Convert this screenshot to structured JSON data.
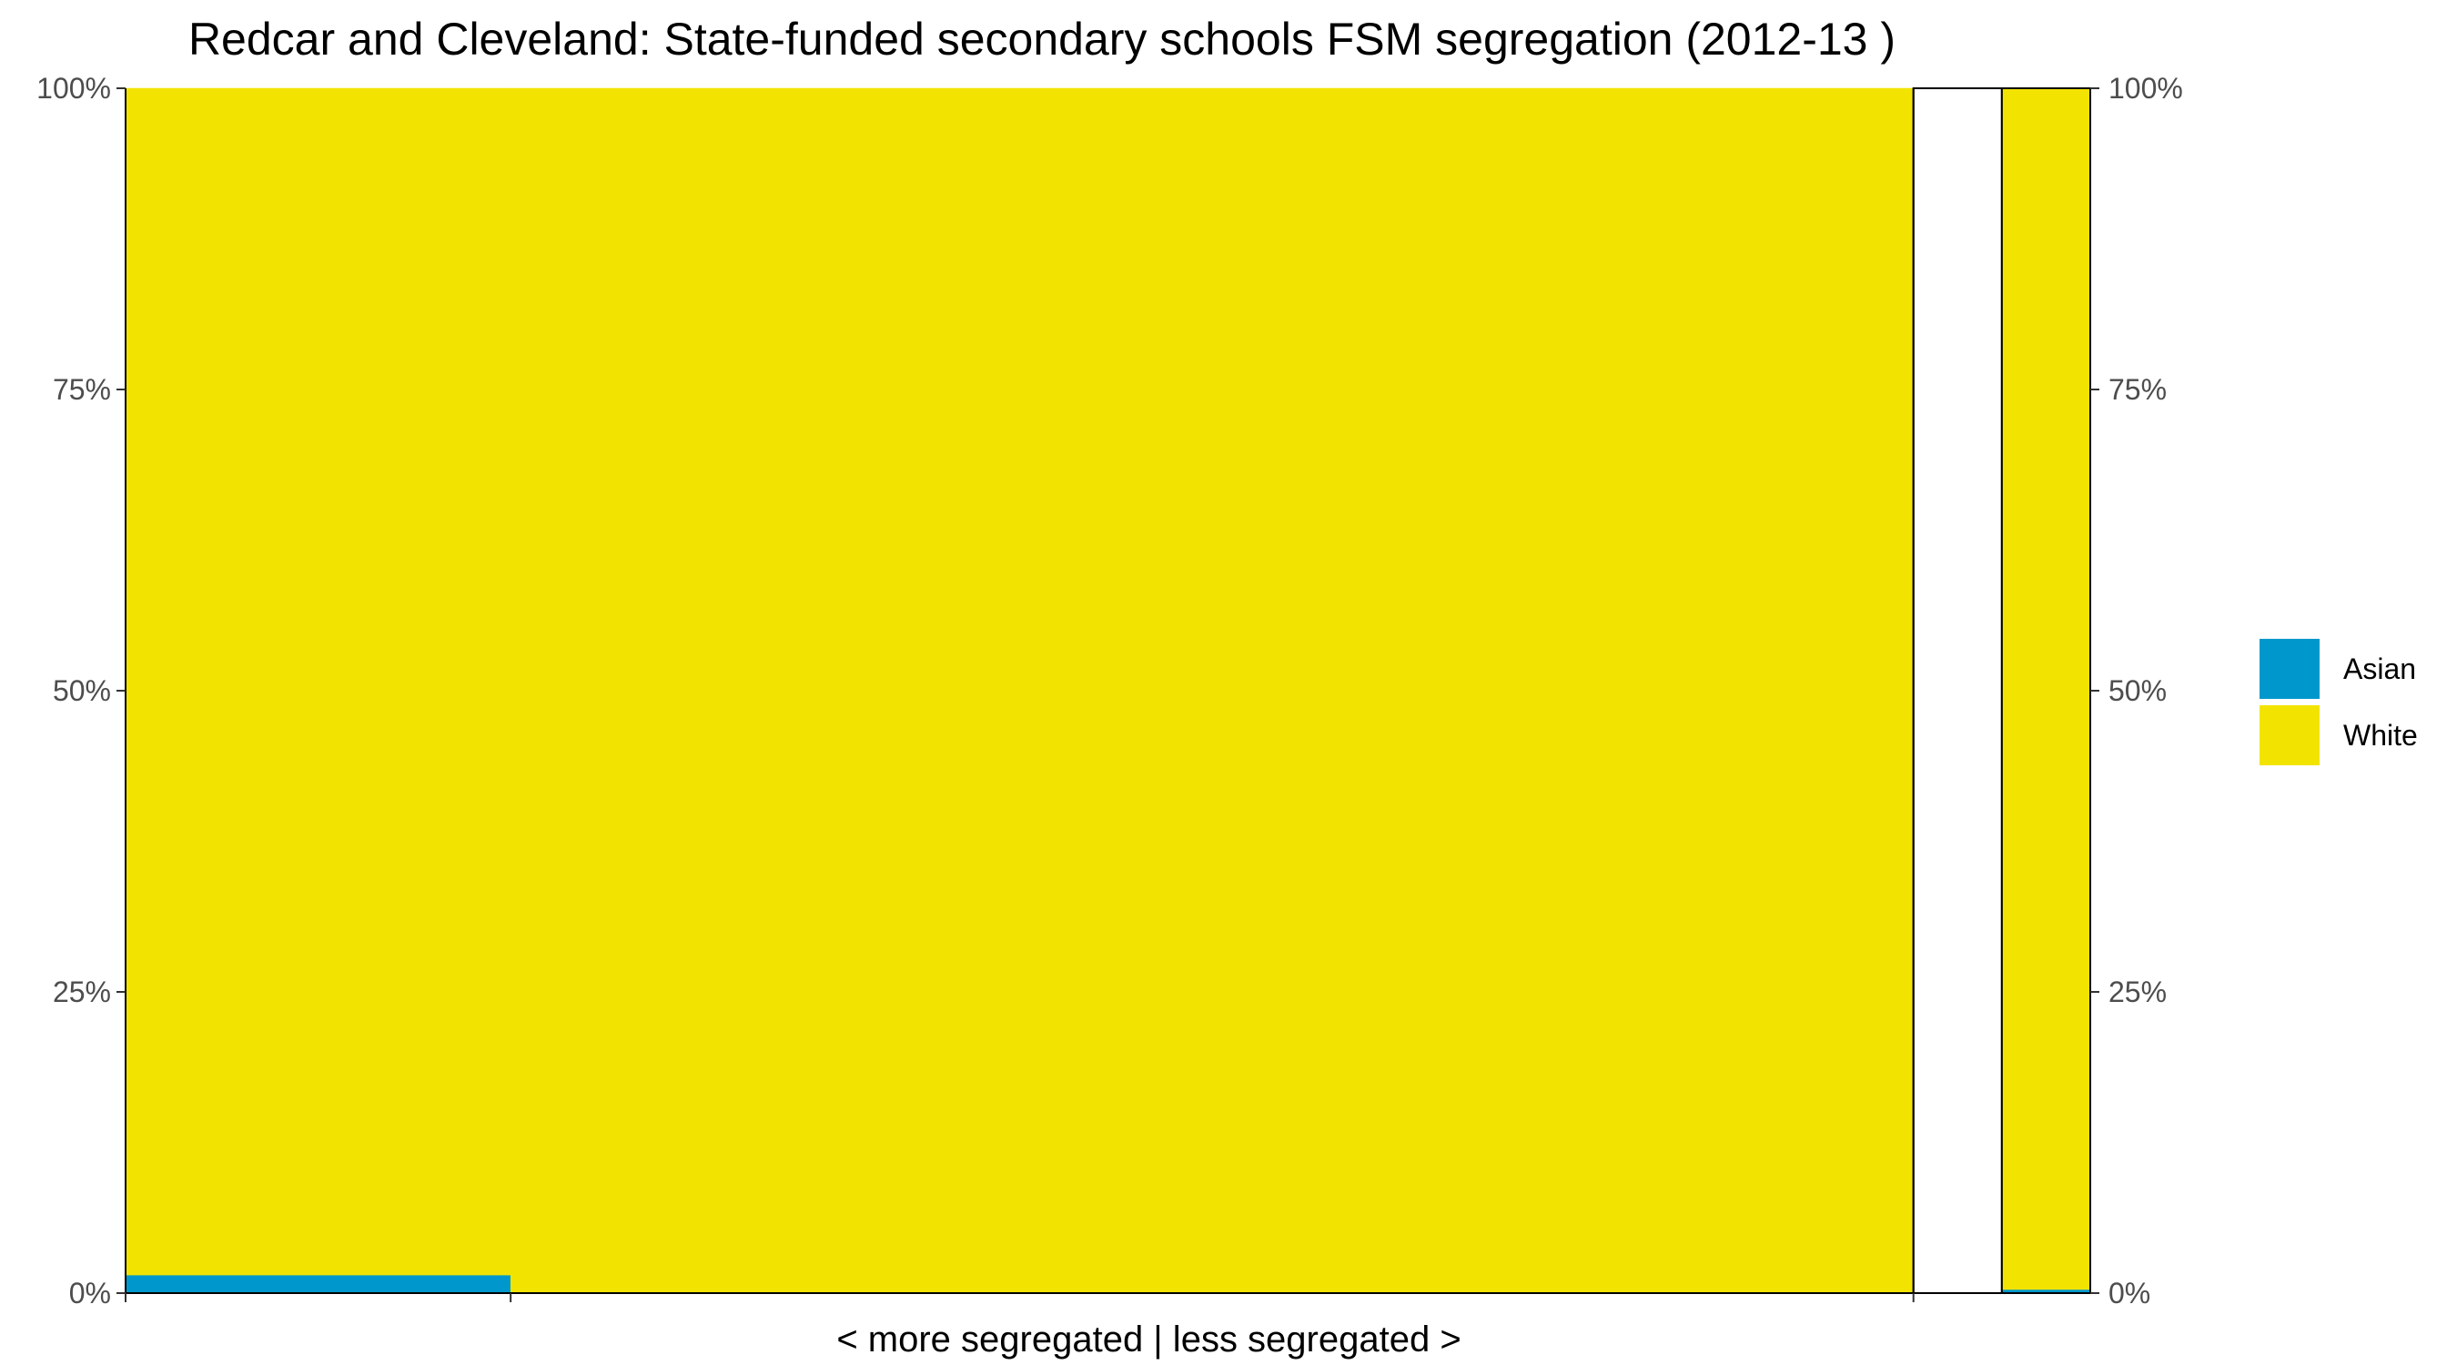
{
  "chart_data": {
    "type": "bar",
    "subtype": "mosaic",
    "title": "Redcar and Cleveland: State-funded secondary schools FSM segregation (2012-13 )",
    "xlabel": "< more segregated | less segregated >",
    "ylabel": "",
    "ylim": [
      0,
      1
    ],
    "y_ticks": [
      "0%",
      "25%",
      "50%",
      "75%",
      "100%"
    ],
    "y_tick_values": [
      0,
      0.25,
      0.5,
      0.75,
      1.0
    ],
    "x_range": [
      0,
      1
    ],
    "x_tick_values": [
      0,
      0.196,
      0.91
    ],
    "legend": {
      "position": "right",
      "entries": [
        {
          "name": "Asian",
          "color": "#0098CC"
        },
        {
          "name": "White",
          "color": "#F2E400"
        }
      ]
    },
    "series": [
      {
        "name": "Asian",
        "color": "#0098CC",
        "values": [
          0.015,
          0.0,
          0.0,
          0.0,
          0.0,
          0.003
        ]
      },
      {
        "name": "White",
        "color": "#F2E400",
        "values": [
          0.985,
          1.0,
          1.0,
          1.0,
          0.0,
          0.997
        ]
      }
    ],
    "columns": [
      {
        "x_start": 0.0,
        "x_end": 0.196,
        "outlined": false
      },
      {
        "x_start": 0.196,
        "x_end": 0.495,
        "outlined": false
      },
      {
        "x_start": 0.495,
        "x_end": 0.91,
        "outlined": false
      },
      {
        "x_start": 0.91,
        "x_end": 0.91,
        "outlined": true
      },
      {
        "x_start": 0.91,
        "x_end": 0.955,
        "outlined": true
      },
      {
        "x_start": 0.955,
        "x_end": 1.0,
        "outlined": true
      }
    ]
  }
}
